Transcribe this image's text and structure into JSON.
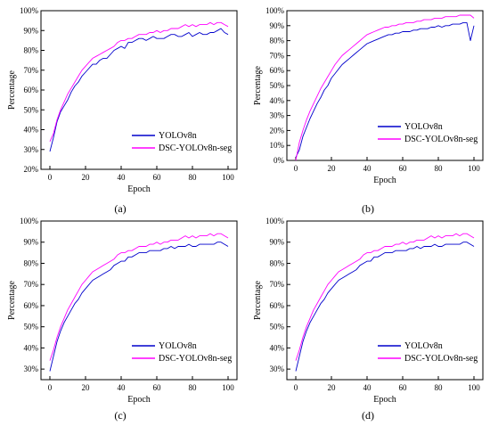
{
  "chart_data": [
    {
      "panel_label": "(a)",
      "type": "line",
      "xlabel": "Epoch",
      "ylabel": "Percentage",
      "xlim": [
        -5,
        105
      ],
      "ylim": [
        20,
        100
      ],
      "xticks": [
        0,
        20,
        40,
        60,
        80,
        100
      ],
      "yticks": [
        20,
        30,
        40,
        50,
        60,
        70,
        80,
        90,
        100
      ],
      "ytick_format": "percent",
      "grid": false,
      "legend_position": "bottom-right",
      "colors": {
        "YOLOv8n": "#0000cc",
        "DSC-YOLOv8n-seg": "#ff00ff"
      },
      "series": [
        {
          "name": "YOLOv8n",
          "color": "#0000cc",
          "x": [
            0,
            2,
            4,
            6,
            8,
            10,
            12,
            14,
            16,
            18,
            20,
            22,
            24,
            26,
            28,
            30,
            32,
            34,
            36,
            38,
            40,
            42,
            44,
            46,
            48,
            50,
            52,
            54,
            56,
            58,
            60,
            62,
            64,
            66,
            68,
            70,
            72,
            74,
            76,
            78,
            80,
            82,
            84,
            86,
            88,
            90,
            92,
            94,
            96,
            98,
            100
          ],
          "values": [
            29,
            36,
            44,
            49,
            52,
            55,
            59,
            62,
            64,
            67,
            69,
            71,
            73,
            73,
            75,
            76,
            76,
            78,
            80,
            81,
            82,
            81,
            84,
            84,
            85,
            86,
            86,
            85,
            86,
            87,
            86,
            86,
            86,
            87,
            88,
            88,
            87,
            87,
            88,
            89,
            87,
            88,
            89,
            88,
            88,
            89,
            89,
            90,
            91,
            89,
            88
          ]
        },
        {
          "name": "DSC-YOLOv8n-seg",
          "color": "#ff00ff",
          "x": [
            0,
            2,
            4,
            6,
            8,
            10,
            12,
            14,
            16,
            18,
            20,
            22,
            24,
            26,
            28,
            30,
            32,
            34,
            36,
            38,
            40,
            42,
            44,
            46,
            48,
            50,
            52,
            54,
            56,
            58,
            60,
            62,
            64,
            66,
            68,
            70,
            72,
            74,
            76,
            78,
            80,
            82,
            84,
            86,
            88,
            90,
            92,
            94,
            96,
            98,
            100
          ],
          "values": [
            34,
            38,
            45,
            50,
            54,
            58,
            61,
            64,
            67,
            70,
            72,
            74,
            76,
            77,
            78,
            79,
            80,
            81,
            82,
            84,
            85,
            85,
            86,
            86,
            87,
            88,
            88,
            88,
            89,
            89,
            90,
            89,
            90,
            90,
            91,
            91,
            91,
            92,
            93,
            92,
            93,
            92,
            93,
            93,
            93,
            94,
            93,
            94,
            94,
            93,
            92
          ]
        }
      ]
    },
    {
      "panel_label": "(b)",
      "type": "line",
      "xlabel": "Epoch",
      "ylabel": "Percentage",
      "xlim": [
        -5,
        105
      ],
      "ylim": [
        0,
        100
      ],
      "xticks": [
        0,
        20,
        40,
        60,
        80,
        100
      ],
      "yticks": [
        0,
        10,
        20,
        30,
        40,
        50,
        60,
        70,
        80,
        90,
        100
      ],
      "ytick_format": "percent",
      "grid": false,
      "legend_position": "bottom-right",
      "colors": {
        "YOLOv8n": "#0000cc",
        "DSC-YOLOv8n-seg": "#ff00ff"
      },
      "series": [
        {
          "name": "YOLOv8n",
          "color": "#0000cc",
          "x": [
            0,
            2,
            4,
            6,
            8,
            10,
            12,
            14,
            16,
            18,
            20,
            22,
            24,
            26,
            28,
            30,
            32,
            34,
            36,
            38,
            40,
            42,
            44,
            46,
            48,
            50,
            52,
            54,
            56,
            58,
            60,
            62,
            64,
            66,
            68,
            70,
            72,
            74,
            76,
            78,
            80,
            82,
            84,
            86,
            88,
            90,
            92,
            94,
            96,
            98,
            100
          ],
          "values": [
            2,
            7,
            16,
            22,
            28,
            33,
            38,
            42,
            47,
            50,
            55,
            58,
            61,
            64,
            66,
            68,
            70,
            72,
            74,
            76,
            78,
            79,
            80,
            81,
            82,
            83,
            84,
            84,
            85,
            85,
            86,
            86,
            86,
            87,
            87,
            88,
            88,
            88,
            89,
            89,
            90,
            89,
            90,
            90,
            91,
            91,
            91,
            92,
            92,
            80,
            90
          ]
        },
        {
          "name": "DSC-YOLOv8n-seg",
          "color": "#ff00ff",
          "x": [
            0,
            2,
            4,
            6,
            8,
            10,
            12,
            14,
            16,
            18,
            20,
            22,
            24,
            26,
            28,
            30,
            32,
            34,
            36,
            38,
            40,
            42,
            44,
            46,
            48,
            50,
            52,
            54,
            56,
            58,
            60,
            62,
            64,
            66,
            68,
            70,
            72,
            74,
            76,
            78,
            80,
            82,
            84,
            86,
            88,
            90,
            92,
            94,
            96,
            98,
            100
          ],
          "values": [
            0,
            12,
            20,
            27,
            33,
            38,
            43,
            48,
            52,
            56,
            60,
            64,
            67,
            70,
            72,
            74,
            76,
            78,
            80,
            82,
            84,
            85,
            86,
            87,
            88,
            89,
            89,
            90,
            90,
            91,
            91,
            92,
            92,
            92,
            93,
            93,
            94,
            94,
            94,
            95,
            95,
            95,
            96,
            96,
            96,
            96,
            97,
            97,
            97,
            97,
            95
          ]
        }
      ]
    },
    {
      "panel_label": "(c)",
      "type": "line",
      "xlabel": "Epoch",
      "ylabel": "Percentage",
      "xlim": [
        -5,
        105
      ],
      "ylim": [
        25,
        100
      ],
      "xticks": [
        0,
        20,
        40,
        60,
        80,
        100
      ],
      "yticks": [
        30,
        40,
        50,
        60,
        70,
        80,
        90,
        100
      ],
      "ytick_format": "percent",
      "grid": false,
      "legend_position": "bottom-right",
      "colors": {
        "YOLOv8n": "#0000cc",
        "DSC-YOLOv8n-seg": "#ff00ff"
      },
      "series": [
        {
          "name": "YOLOv8n",
          "color": "#0000cc",
          "x": [
            0,
            2,
            4,
            6,
            8,
            10,
            12,
            14,
            16,
            18,
            20,
            22,
            24,
            26,
            28,
            30,
            32,
            34,
            36,
            38,
            40,
            42,
            44,
            46,
            48,
            50,
            52,
            54,
            56,
            58,
            60,
            62,
            64,
            66,
            68,
            70,
            72,
            74,
            76,
            78,
            80,
            82,
            84,
            86,
            88,
            90,
            92,
            94,
            96,
            98,
            100
          ],
          "values": [
            29,
            36,
            43,
            48,
            52,
            55,
            58,
            61,
            63,
            66,
            68,
            70,
            72,
            73,
            74,
            75,
            76,
            77,
            79,
            80,
            81,
            81,
            83,
            83,
            84,
            85,
            85,
            85,
            86,
            86,
            86,
            86,
            87,
            87,
            88,
            87,
            88,
            88,
            88,
            89,
            88,
            88,
            89,
            89,
            89,
            89,
            89,
            90,
            90,
            89,
            88
          ]
        },
        {
          "name": "DSC-YOLOv8n-seg",
          "color": "#ff00ff",
          "x": [
            0,
            2,
            4,
            6,
            8,
            10,
            12,
            14,
            16,
            18,
            20,
            22,
            24,
            26,
            28,
            30,
            32,
            34,
            36,
            38,
            40,
            42,
            44,
            46,
            48,
            50,
            52,
            54,
            56,
            58,
            60,
            62,
            64,
            66,
            68,
            70,
            72,
            74,
            76,
            78,
            80,
            82,
            84,
            86,
            88,
            90,
            92,
            94,
            96,
            98,
            100
          ],
          "values": [
            34,
            39,
            45,
            50,
            54,
            58,
            61,
            64,
            67,
            70,
            72,
            74,
            76,
            77,
            78,
            79,
            80,
            81,
            82,
            84,
            85,
            85,
            86,
            86,
            87,
            88,
            88,
            88,
            89,
            89,
            90,
            89,
            90,
            90,
            91,
            91,
            91,
            92,
            93,
            92,
            93,
            92,
            93,
            93,
            93,
            94,
            93,
            94,
            94,
            93,
            92
          ]
        }
      ]
    },
    {
      "panel_label": "(d)",
      "type": "line",
      "xlabel": "Epoch",
      "ylabel": "Percentage",
      "xlim": [
        -5,
        105
      ],
      "ylim": [
        25,
        100
      ],
      "xticks": [
        0,
        20,
        40,
        60,
        80,
        100
      ],
      "yticks": [
        30,
        40,
        50,
        60,
        70,
        80,
        90,
        100
      ],
      "ytick_format": "percent",
      "grid": false,
      "legend_position": "bottom-right",
      "colors": {
        "YOLOv8n": "#0000cc",
        "DSC-YOLOv8n-seg": "#ff00ff"
      },
      "series": [
        {
          "name": "YOLOv8n",
          "color": "#0000cc",
          "x": [
            0,
            2,
            4,
            6,
            8,
            10,
            12,
            14,
            16,
            18,
            20,
            22,
            24,
            26,
            28,
            30,
            32,
            34,
            36,
            38,
            40,
            42,
            44,
            46,
            48,
            50,
            52,
            54,
            56,
            58,
            60,
            62,
            64,
            66,
            68,
            70,
            72,
            74,
            76,
            78,
            80,
            82,
            84,
            86,
            88,
            90,
            92,
            94,
            96,
            98,
            100
          ],
          "values": [
            29,
            36,
            43,
            48,
            52,
            55,
            58,
            61,
            63,
            66,
            68,
            70,
            72,
            73,
            74,
            75,
            76,
            77,
            79,
            80,
            81,
            81,
            83,
            83,
            84,
            85,
            85,
            85,
            86,
            86,
            86,
            86,
            87,
            87,
            88,
            87,
            88,
            88,
            88,
            89,
            88,
            88,
            89,
            89,
            89,
            89,
            89,
            90,
            90,
            89,
            88
          ]
        },
        {
          "name": "DSC-YOLOv8n-seg",
          "color": "#ff00ff",
          "x": [
            0,
            2,
            4,
            6,
            8,
            10,
            12,
            14,
            16,
            18,
            20,
            22,
            24,
            26,
            28,
            30,
            32,
            34,
            36,
            38,
            40,
            42,
            44,
            46,
            48,
            50,
            52,
            54,
            56,
            58,
            60,
            62,
            64,
            66,
            68,
            70,
            72,
            74,
            76,
            78,
            80,
            82,
            84,
            86,
            88,
            90,
            92,
            94,
            96,
            98,
            100
          ],
          "values": [
            34,
            39,
            45,
            50,
            54,
            58,
            61,
            64,
            67,
            70,
            72,
            74,
            76,
            77,
            78,
            79,
            80,
            81,
            82,
            84,
            85,
            85,
            86,
            86,
            87,
            88,
            88,
            88,
            89,
            89,
            90,
            89,
            90,
            90,
            91,
            91,
            91,
            92,
            93,
            92,
            93,
            92,
            93,
            93,
            93,
            94,
            93,
            94,
            94,
            93,
            92
          ]
        }
      ]
    }
  ]
}
